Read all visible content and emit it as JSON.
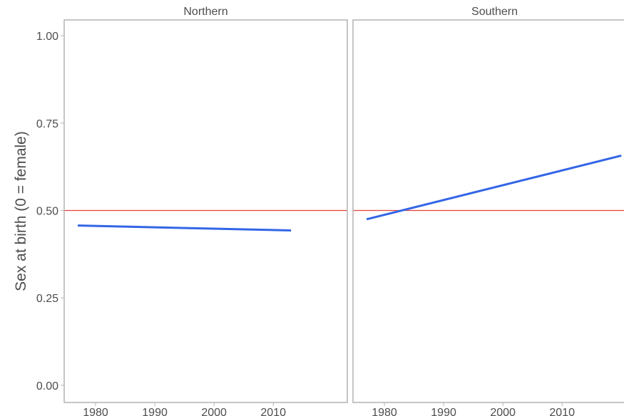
{
  "chart_data": [
    {
      "type": "line",
      "title": "Northern",
      "ylabel": "Sex at birth (0 = female)",
      "x": [
        1977,
        2013
      ],
      "series": [
        {
          "color": "#3366e6",
          "values": [
            0.457,
            0.443
          ]
        }
      ],
      "hline": 0.5,
      "hline_color": "#e8403a",
      "xlim": [
        1974.7,
        2022.5
      ],
      "ylim": [
        -0.049,
        1.045
      ],
      "xticks": [
        1980,
        1990,
        2000,
        2010
      ],
      "yticks": [
        {
          "value": 0,
          "label": "0.00"
        },
        {
          "value": 0.25,
          "label": "0.25"
        },
        {
          "value": 0.5,
          "label": "0.50"
        },
        {
          "value": 0.75,
          "label": "0.75"
        },
        {
          "value": 1,
          "label": "1.00"
        }
      ]
    },
    {
      "type": "line",
      "title": "Southern",
      "x": [
        1977,
        2020
      ],
      "series": [
        {
          "color": "#3366e6",
          "values": [
            0.475,
            0.657
          ]
        }
      ],
      "hline": 0.5,
      "hline_color": "#e8403a",
      "xlim": [
        1974.7,
        2022.5
      ],
      "ylim": [
        -0.049,
        1.045
      ],
      "xticks": [
        1980,
        1990,
        2000,
        2010
      ]
    }
  ]
}
